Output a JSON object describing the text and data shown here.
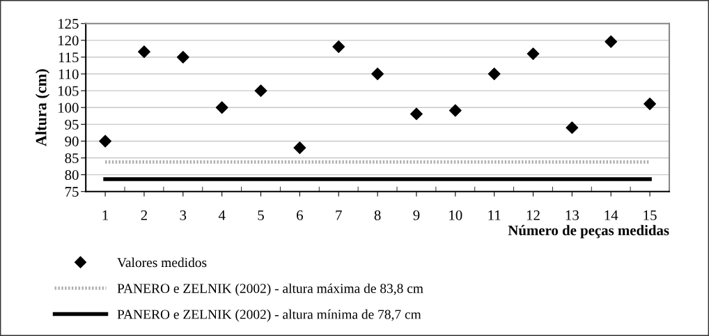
{
  "chart_data": {
    "type": "scatter",
    "xlabel": "Número de peças medidas",
    "ylabel": "Altura (cm)",
    "categories": [
      "1",
      "2",
      "3",
      "4",
      "5",
      "6",
      "7",
      "8",
      "9",
      "10",
      "11",
      "12",
      "13",
      "14",
      "15"
    ],
    "series": [
      {
        "name": "Valores medidos",
        "type": "scatter",
        "color": "#000000",
        "marker": "diamond",
        "values": [
          90,
          116.6,
          115,
          100,
          105,
          88,
          118.1,
          110,
          98.1,
          99.1,
          110,
          116,
          94,
          119.6,
          101.1
        ]
      },
      {
        "name": "PANERO e ZELNIK (2002) - altura máxima de 83,8 cm",
        "type": "line",
        "color": "#b0b0b0",
        "line_style": "dotted",
        "marker": "none",
        "values": [
          83.8,
          83.8,
          83.8,
          83.8,
          83.8,
          83.8,
          83.8,
          83.8,
          83.8,
          83.8,
          83.8,
          83.8,
          83.8,
          83.8,
          83.8
        ]
      },
      {
        "name": "PANERO e ZELNIK (2002) - altura mínima de 78,7 cm",
        "type": "line",
        "color": "#000000",
        "line_style": "solid",
        "marker": "none",
        "values": [
          78.7,
          78.7,
          78.7,
          78.7,
          78.7,
          78.7,
          78.7,
          78.7,
          78.7,
          78.7,
          78.7,
          78.7,
          78.7,
          78.7,
          78.7
        ]
      }
    ],
    "ylim": [
      75,
      125
    ],
    "yticks": [
      75,
      80,
      85,
      90,
      95,
      100,
      105,
      110,
      115,
      120,
      125
    ],
    "grid": "y",
    "legend": "bottom"
  }
}
